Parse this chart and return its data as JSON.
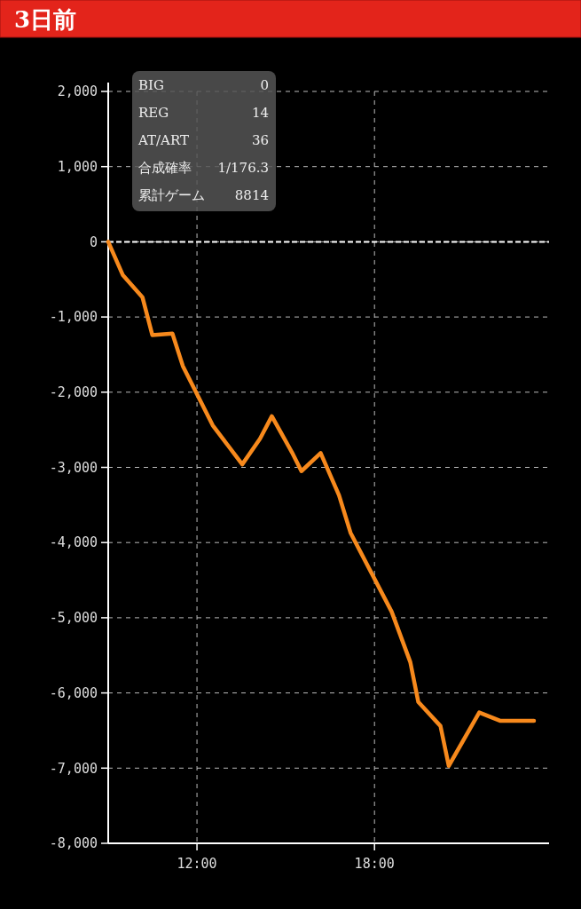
{
  "chart_data": {
    "type": "line",
    "title": "3日前",
    "x": [
      9,
      9.49,
      10.16,
      10.49,
      11.17,
      11.52,
      12.53,
      13.53,
      14.13,
      14.53,
      15.21,
      15.53,
      16.18,
      16.8,
      17.19,
      18.58,
      19.21,
      19.48,
      20.23,
      20.51,
      21.54,
      22.24,
      23.39
    ],
    "series": [
      {
        "color": "#f7891c",
        "values": [
          0,
          -440,
          -740,
          -1240,
          -1220,
          -1650,
          -2440,
          -2960,
          -2620,
          -2320,
          -2800,
          -3050,
          -2810,
          -3370,
          -3870,
          -4920,
          -5590,
          -6120,
          -6440,
          -6970,
          -6260,
          -6370,
          -6370
        ]
      }
    ],
    "xlim": [
      9,
      23.9
    ],
    "xticks": [
      {
        "value": 12,
        "label": "12:00"
      },
      {
        "value": 18,
        "label": "18:00"
      }
    ],
    "ylim": [
      -8000,
      2000
    ],
    "yticks": [
      {
        "value": -8000,
        "label": "-8,000"
      },
      {
        "value": -7000,
        "label": "-7,000"
      },
      {
        "value": -6000,
        "label": "-6,000"
      },
      {
        "value": -5000,
        "label": "-5,000"
      },
      {
        "value": -4000,
        "label": "-4,000"
      },
      {
        "value": -3000,
        "label": "-3,000"
      },
      {
        "value": -2000,
        "label": "-2,000"
      },
      {
        "value": -1000,
        "label": "-1,000"
      },
      {
        "value": 0,
        "label": "0"
      },
      {
        "value": 1000,
        "label": "1,000"
      },
      {
        "value": 2000,
        "label": "2,000"
      }
    ],
    "grid": true,
    "marker": "none",
    "line_style": "solid",
    "ref_lines": [
      {
        "axis": "y",
        "value": 0,
        "color": "#ffffff"
      }
    ],
    "annotations": [
      "BIG",
      "0",
      "REG",
      "14",
      "AT/ART",
      "36",
      "合成確率",
      "1/176.3",
      "累計ゲーム",
      "8814"
    ]
  }
}
